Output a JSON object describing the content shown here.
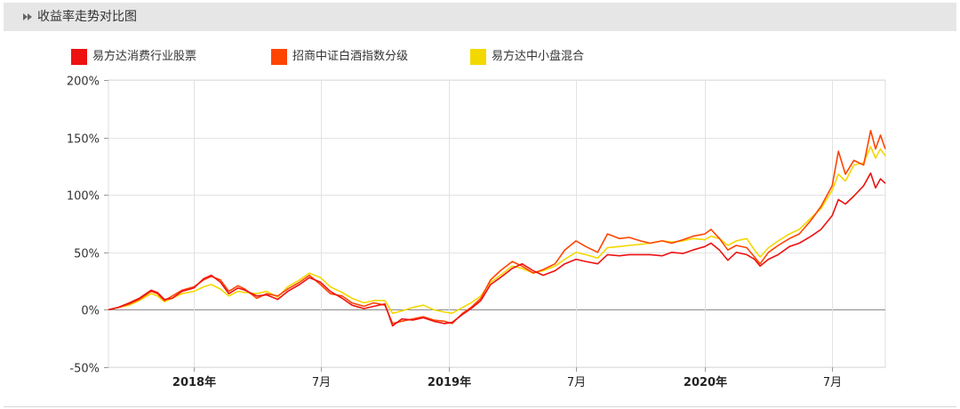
{
  "panel": {
    "title": "收益率走势对比图",
    "title_icon": "double-chevron-right-icon"
  },
  "chart_data": {
    "type": "line",
    "title": "",
    "xlabel": "",
    "ylabel": "",
    "ylim": [
      -50,
      200
    ],
    "yticks": [
      200,
      150,
      100,
      50,
      0,
      -50
    ],
    "ytick_labels": [
      "200%",
      "150%",
      "100%",
      "50%",
      "0%",
      "-50%"
    ],
    "xlim": [
      "2017-09-01",
      "2020-09-15"
    ],
    "xticks": [
      {
        "date": "2018-01-01",
        "label": "2018年",
        "bold": true
      },
      {
        "date": "2018-07-01",
        "label": "7月",
        "bold": false
      },
      {
        "date": "2019-01-01",
        "label": "2019年",
        "bold": true
      },
      {
        "date": "2019-07-01",
        "label": "7月",
        "bold": false
      },
      {
        "date": "2020-01-01",
        "label": "2020年",
        "bold": true
      },
      {
        "date": "2020-07-01",
        "label": "7月",
        "bold": false
      }
    ],
    "grid": true,
    "legend_position": "top-left",
    "series": [
      {
        "name": "易方达消费行业股票",
        "color": "#ee1111",
        "points": [
          [
            "2017-09-01",
            0
          ],
          [
            "2017-09-15",
            2
          ],
          [
            "2017-10-01",
            6
          ],
          [
            "2017-10-15",
            10
          ],
          [
            "2017-11-01",
            17
          ],
          [
            "2017-11-10",
            15
          ],
          [
            "2017-11-20",
            9
          ],
          [
            "2017-12-01",
            10
          ],
          [
            "2017-12-15",
            16
          ],
          [
            "2018-01-01",
            19
          ],
          [
            "2018-01-15",
            27
          ],
          [
            "2018-01-26",
            30
          ],
          [
            "2018-02-08",
            24
          ],
          [
            "2018-02-20",
            14
          ],
          [
            "2018-03-05",
            19
          ],
          [
            "2018-03-15",
            17
          ],
          [
            "2018-04-01",
            12
          ],
          [
            "2018-04-15",
            13
          ],
          [
            "2018-05-01",
            9
          ],
          [
            "2018-05-15",
            16
          ],
          [
            "2018-06-01",
            22
          ],
          [
            "2018-06-15",
            28
          ],
          [
            "2018-07-01",
            24
          ],
          [
            "2018-07-15",
            16
          ],
          [
            "2018-08-01",
            10
          ],
          [
            "2018-08-15",
            4
          ],
          [
            "2018-09-01",
            1
          ],
          [
            "2018-09-15",
            3
          ],
          [
            "2018-10-01",
            5
          ],
          [
            "2018-10-12",
            -14
          ],
          [
            "2018-10-25",
            -8
          ],
          [
            "2018-11-10",
            -9
          ],
          [
            "2018-11-25",
            -7
          ],
          [
            "2018-12-10",
            -10
          ],
          [
            "2018-12-25",
            -12
          ],
          [
            "2019-01-05",
            -11
          ],
          [
            "2019-01-20",
            -4
          ],
          [
            "2019-02-01",
            1
          ],
          [
            "2019-02-15",
            8
          ],
          [
            "2019-03-01",
            22
          ],
          [
            "2019-03-15",
            28
          ],
          [
            "2019-04-01",
            36
          ],
          [
            "2019-04-15",
            40
          ],
          [
            "2019-05-01",
            34
          ],
          [
            "2019-05-15",
            30
          ],
          [
            "2019-06-01",
            34
          ],
          [
            "2019-06-15",
            40
          ],
          [
            "2019-07-01",
            44
          ],
          [
            "2019-07-15",
            42
          ],
          [
            "2019-08-01",
            40
          ],
          [
            "2019-08-15",
            48
          ],
          [
            "2019-09-01",
            47
          ],
          [
            "2019-09-15",
            48
          ],
          [
            "2019-10-01",
            48
          ],
          [
            "2019-10-15",
            48
          ],
          [
            "2019-11-01",
            47
          ],
          [
            "2019-11-15",
            50
          ],
          [
            "2019-12-01",
            49
          ],
          [
            "2019-12-15",
            52
          ],
          [
            "2020-01-01",
            55
          ],
          [
            "2020-01-10",
            58
          ],
          [
            "2020-01-22",
            52
          ],
          [
            "2020-02-03",
            43
          ],
          [
            "2020-02-15",
            50
          ],
          [
            "2020-03-01",
            48
          ],
          [
            "2020-03-12",
            44
          ],
          [
            "2020-03-20",
            38
          ],
          [
            "2020-04-01",
            44
          ],
          [
            "2020-04-15",
            48
          ],
          [
            "2020-05-01",
            55
          ],
          [
            "2020-05-15",
            58
          ],
          [
            "2020-06-01",
            64
          ],
          [
            "2020-06-15",
            70
          ],
          [
            "2020-07-01",
            82
          ],
          [
            "2020-07-10",
            96
          ],
          [
            "2020-07-20",
            92
          ],
          [
            "2020-08-01",
            99
          ],
          [
            "2020-08-15",
            108
          ],
          [
            "2020-08-25",
            119
          ],
          [
            "2020-09-01",
            106
          ],
          [
            "2020-09-08",
            114
          ],
          [
            "2020-09-15",
            110
          ]
        ]
      },
      {
        "name": "招商中证白酒指数分级",
        "color": "#ff4400",
        "points": [
          [
            "2017-09-01",
            0
          ],
          [
            "2017-09-15",
            2
          ],
          [
            "2017-10-01",
            5
          ],
          [
            "2017-10-15",
            9
          ],
          [
            "2017-11-01",
            16
          ],
          [
            "2017-11-10",
            14
          ],
          [
            "2017-11-20",
            8
          ],
          [
            "2017-12-01",
            12
          ],
          [
            "2017-12-15",
            17
          ],
          [
            "2018-01-01",
            20
          ],
          [
            "2018-01-15",
            26
          ],
          [
            "2018-01-26",
            29
          ],
          [
            "2018-02-08",
            26
          ],
          [
            "2018-02-20",
            16
          ],
          [
            "2018-03-05",
            21
          ],
          [
            "2018-03-15",
            18
          ],
          [
            "2018-04-01",
            10
          ],
          [
            "2018-04-15",
            14
          ],
          [
            "2018-05-01",
            12
          ],
          [
            "2018-05-15",
            18
          ],
          [
            "2018-06-01",
            24
          ],
          [
            "2018-06-15",
            30
          ],
          [
            "2018-07-01",
            22
          ],
          [
            "2018-07-15",
            14
          ],
          [
            "2018-08-01",
            12
          ],
          [
            "2018-08-15",
            6
          ],
          [
            "2018-09-01",
            3
          ],
          [
            "2018-09-15",
            6
          ],
          [
            "2018-10-01",
            4
          ],
          [
            "2018-10-12",
            -12
          ],
          [
            "2018-10-25",
            -10
          ],
          [
            "2018-11-10",
            -8
          ],
          [
            "2018-11-25",
            -6
          ],
          [
            "2018-12-10",
            -9
          ],
          [
            "2018-12-25",
            -10
          ],
          [
            "2019-01-05",
            -12
          ],
          [
            "2019-01-20",
            -3
          ],
          [
            "2019-02-01",
            2
          ],
          [
            "2019-02-15",
            10
          ],
          [
            "2019-03-01",
            26
          ],
          [
            "2019-03-15",
            34
          ],
          [
            "2019-04-01",
            42
          ],
          [
            "2019-04-15",
            38
          ],
          [
            "2019-05-01",
            32
          ],
          [
            "2019-05-15",
            35
          ],
          [
            "2019-06-01",
            40
          ],
          [
            "2019-06-15",
            52
          ],
          [
            "2019-07-01",
            60
          ],
          [
            "2019-07-15",
            55
          ],
          [
            "2019-08-01",
            50
          ],
          [
            "2019-08-15",
            66
          ],
          [
            "2019-09-01",
            62
          ],
          [
            "2019-09-15",
            63
          ],
          [
            "2019-10-01",
            60
          ],
          [
            "2019-10-15",
            58
          ],
          [
            "2019-11-01",
            60
          ],
          [
            "2019-11-15",
            58
          ],
          [
            "2019-12-01",
            61
          ],
          [
            "2019-12-15",
            64
          ],
          [
            "2020-01-01",
            66
          ],
          [
            "2020-01-10",
            70
          ],
          [
            "2020-01-22",
            62
          ],
          [
            "2020-02-03",
            52
          ],
          [
            "2020-02-15",
            56
          ],
          [
            "2020-03-01",
            54
          ],
          [
            "2020-03-12",
            46
          ],
          [
            "2020-03-20",
            40
          ],
          [
            "2020-04-01",
            50
          ],
          [
            "2020-04-15",
            56
          ],
          [
            "2020-05-01",
            62
          ],
          [
            "2020-05-15",
            66
          ],
          [
            "2020-06-01",
            78
          ],
          [
            "2020-06-15",
            90
          ],
          [
            "2020-07-01",
            108
          ],
          [
            "2020-07-10",
            138
          ],
          [
            "2020-07-20",
            118
          ],
          [
            "2020-08-01",
            130
          ],
          [
            "2020-08-15",
            126
          ],
          [
            "2020-08-25",
            156
          ],
          [
            "2020-09-01",
            140
          ],
          [
            "2020-09-08",
            152
          ],
          [
            "2020-09-15",
            140
          ]
        ]
      },
      {
        "name": "易方达中小盘混合",
        "color": "#f3d800",
        "points": [
          [
            "2017-09-01",
            0
          ],
          [
            "2017-09-15",
            2
          ],
          [
            "2017-10-01",
            4
          ],
          [
            "2017-10-15",
            8
          ],
          [
            "2017-11-01",
            14
          ],
          [
            "2017-11-10",
            12
          ],
          [
            "2017-11-20",
            7
          ],
          [
            "2017-12-01",
            10
          ],
          [
            "2017-12-15",
            14
          ],
          [
            "2018-01-01",
            16
          ],
          [
            "2018-01-15",
            20
          ],
          [
            "2018-01-26",
            22
          ],
          [
            "2018-02-08",
            18
          ],
          [
            "2018-02-20",
            12
          ],
          [
            "2018-03-05",
            16
          ],
          [
            "2018-03-15",
            15
          ],
          [
            "2018-04-01",
            14
          ],
          [
            "2018-04-15",
            16
          ],
          [
            "2018-05-01",
            11
          ],
          [
            "2018-05-15",
            20
          ],
          [
            "2018-06-01",
            26
          ],
          [
            "2018-06-15",
            32
          ],
          [
            "2018-07-01",
            28
          ],
          [
            "2018-07-15",
            20
          ],
          [
            "2018-08-01",
            15
          ],
          [
            "2018-08-15",
            10
          ],
          [
            "2018-09-01",
            6
          ],
          [
            "2018-09-15",
            8
          ],
          [
            "2018-10-01",
            8
          ],
          [
            "2018-10-12",
            -3
          ],
          [
            "2018-10-25",
            -1
          ],
          [
            "2018-11-10",
            2
          ],
          [
            "2018-11-25",
            4
          ],
          [
            "2018-12-10",
            0
          ],
          [
            "2018-12-25",
            -2
          ],
          [
            "2019-01-05",
            -3
          ],
          [
            "2019-01-20",
            2
          ],
          [
            "2019-02-01",
            6
          ],
          [
            "2019-02-15",
            12
          ],
          [
            "2019-03-01",
            24
          ],
          [
            "2019-03-15",
            30
          ],
          [
            "2019-04-01",
            38
          ],
          [
            "2019-04-15",
            36
          ],
          [
            "2019-05-01",
            32
          ],
          [
            "2019-05-15",
            34
          ],
          [
            "2019-06-01",
            38
          ],
          [
            "2019-06-15",
            44
          ],
          [
            "2019-07-01",
            50
          ],
          [
            "2019-07-15",
            48
          ],
          [
            "2019-08-01",
            45
          ],
          [
            "2019-08-15",
            54
          ],
          [
            "2019-09-01",
            55
          ],
          [
            "2019-09-15",
            56
          ],
          [
            "2019-10-01",
            57
          ],
          [
            "2019-10-15",
            58
          ],
          [
            "2019-11-01",
            60
          ],
          [
            "2019-11-15",
            59
          ],
          [
            "2019-12-01",
            60
          ],
          [
            "2019-12-15",
            62
          ],
          [
            "2020-01-01",
            61
          ],
          [
            "2020-01-10",
            64
          ],
          [
            "2020-01-22",
            62
          ],
          [
            "2020-02-03",
            56
          ],
          [
            "2020-02-15",
            60
          ],
          [
            "2020-03-01",
            62
          ],
          [
            "2020-03-12",
            52
          ],
          [
            "2020-03-20",
            46
          ],
          [
            "2020-04-01",
            54
          ],
          [
            "2020-04-15",
            60
          ],
          [
            "2020-05-01",
            66
          ],
          [
            "2020-05-15",
            70
          ],
          [
            "2020-06-01",
            80
          ],
          [
            "2020-06-15",
            88
          ],
          [
            "2020-07-01",
            104
          ],
          [
            "2020-07-10",
            118
          ],
          [
            "2020-07-20",
            112
          ],
          [
            "2020-08-01",
            126
          ],
          [
            "2020-08-15",
            128
          ],
          [
            "2020-08-25",
            142
          ],
          [
            "2020-09-01",
            132
          ],
          [
            "2020-09-08",
            140
          ],
          [
            "2020-09-15",
            134
          ]
        ]
      }
    ]
  }
}
